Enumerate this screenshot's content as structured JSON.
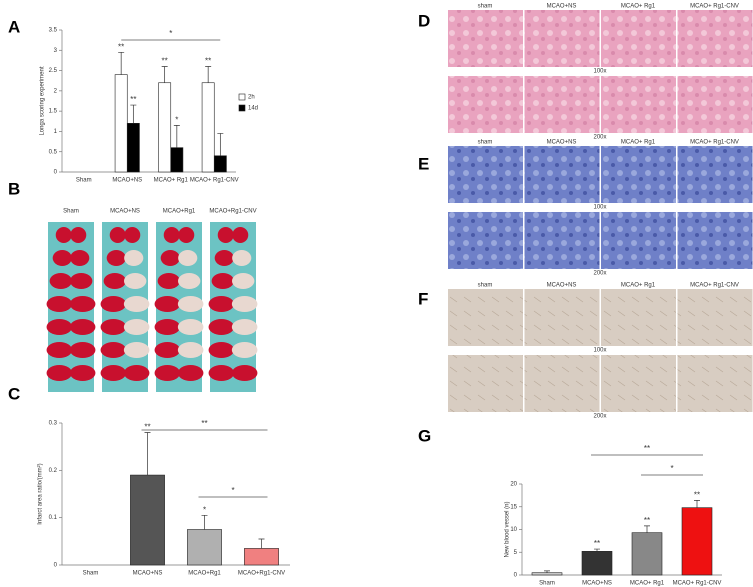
{
  "panel_labels": [
    "A",
    "B",
    "C",
    "D",
    "E",
    "F",
    "G"
  ],
  "chart_data": [
    {
      "type": "grouped-bar",
      "ylabel": "Longa scoring experiment",
      "categories": [
        "Sham",
        "MCAO+NS",
        "MCAO+ Rg1",
        "MCAO+ Rg1-CNV"
      ],
      "series": [
        {
          "name": "2h",
          "color": "#ffffff",
          "values": [
            0,
            2.4,
            2.2,
            2.2
          ],
          "errors": [
            0,
            0.55,
            0.4,
            0.4
          ],
          "significance": [
            null,
            "**",
            "**",
            "**"
          ]
        },
        {
          "name": "14d",
          "color": "#000000",
          "values": [
            0,
            1.2,
            0.6,
            0.4
          ],
          "errors": [
            0,
            0.45,
            0.55,
            0.55
          ],
          "significance": [
            null,
            "**",
            "*",
            null
          ]
        }
      ],
      "comparisons": [
        {
          "label": "*"
        }
      ],
      "ylim": [
        0,
        3.5
      ],
      "yticks": [
        0,
        0.5,
        1,
        1.5,
        2,
        2.5,
        3,
        3.5
      ],
      "legend": "right"
    },
    {
      "type": "bar",
      "ylabel": "Infarct area ratio/(mm²)",
      "categories": [
        "Sham",
        "MCAO+NS",
        "MCAO+Rg1",
        "MCAO+Rg1-CNV"
      ],
      "values": [
        0,
        0.19,
        0.075,
        0.035
      ],
      "errors": [
        0,
        0.09,
        0.03,
        0.02
      ],
      "colors": [
        "#aaaaaa",
        "#555555",
        "#b0b0b0",
        "#f08080"
      ],
      "significance": [
        null,
        "**",
        "*",
        null
      ],
      "comparisons": [
        {
          "label": "**"
        },
        {
          "label": "*"
        }
      ],
      "ylim": [
        0,
        0.3
      ],
      "yticks": [
        0,
        0.1,
        0.2,
        0.3
      ]
    },
    {
      "type": "bar",
      "ylabel": "New blood vessel (n)",
      "categories": [
        "Sham",
        "MCAO+NS",
        "MCAO+ Rg1",
        "MCAO+ Rg1-CNV"
      ],
      "values": [
        0.5,
        5.2,
        9.3,
        14.8
      ],
      "errors": [
        0.4,
        0.5,
        1.5,
        1.6
      ],
      "colors": [
        "#cccccc",
        "#333333",
        "#888888",
        "#ee1111"
      ],
      "significance": [
        null,
        "**",
        "**",
        "**"
      ],
      "comparisons": [
        {
          "label": "**"
        },
        {
          "label": "*"
        }
      ],
      "ylim": [
        0,
        20
      ],
      "yticks": [
        0,
        5,
        10,
        15,
        20
      ]
    }
  ],
  "images": {
    "B": {
      "labels": [
        "Sham",
        "MCAO+NS",
        "MCAO+Rg1",
        "MCAO+Rg1-CNV"
      ]
    },
    "D": {
      "labels": [
        "sham",
        "MCAO+NS",
        "MCAO+ Rg1",
        "MCAO+ Rg1-CNV"
      ],
      "magnifications": [
        "100x",
        "200x"
      ]
    },
    "E": {
      "labels": [
        "sham",
        "MCAO+NS",
        "MCAO+ Rg1",
        "MCAO+ Rg1-CNV"
      ],
      "magnifications": [
        "100x",
        "200x"
      ]
    },
    "F": {
      "labels": [
        "sham",
        "MCAO+NS",
        "MCAO+ Rg1",
        "MCAO+ Rg1-CNV"
      ],
      "magnifications": [
        "100x",
        "200x"
      ]
    }
  }
}
